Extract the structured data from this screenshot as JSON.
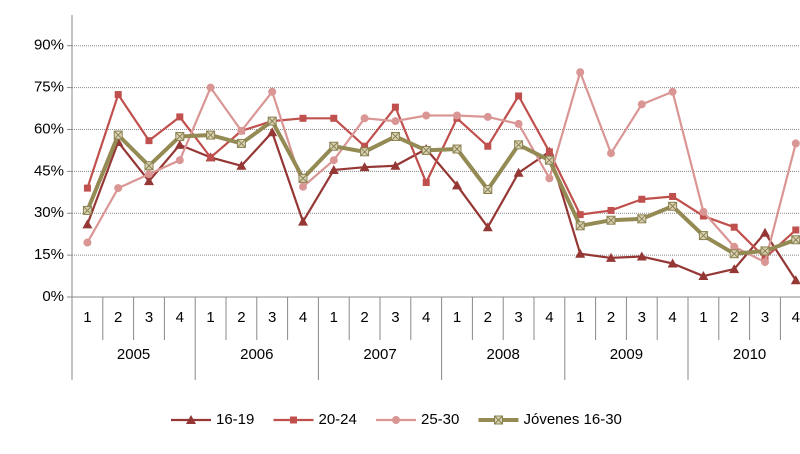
{
  "chart_data": {
    "type": "line",
    "categories": [
      "1",
      "2",
      "3",
      "4",
      "1",
      "2",
      "3",
      "4",
      "1",
      "2",
      "3",
      "4",
      "1",
      "2",
      "3",
      "4",
      "1",
      "2",
      "3",
      "4",
      "1",
      "2",
      "3",
      "4"
    ],
    "years": [
      "2005",
      "2006",
      "2007",
      "2008",
      "2009",
      "2010"
    ],
    "series": [
      {
        "name": "16-19",
        "color": "#953735",
        "marker": "triangle",
        "values": [
          26,
          55.5,
          41.5,
          54.5,
          50,
          47,
          59,
          27,
          45.5,
          46.5,
          47,
          53,
          40,
          25,
          44.5,
          52,
          15.5,
          14,
          14.5,
          12,
          7.5,
          10,
          23,
          6
        ]
      },
      {
        "name": "20-24",
        "color": "#c0504d",
        "marker": "square",
        "values": [
          39,
          72.5,
          56,
          64.5,
          50,
          59.5,
          63,
          64,
          64,
          54,
          68,
          41,
          64,
          54,
          72,
          52,
          29.5,
          31,
          35,
          36,
          29,
          25,
          14,
          24
        ]
      },
      {
        "name": "25-30",
        "color": "#d99694",
        "marker": "circle",
        "values": [
          19.5,
          39,
          44,
          49,
          75,
          59.5,
          73.5,
          39.5,
          49,
          64,
          63,
          65,
          65,
          64.5,
          62,
          42.5,
          80.5,
          51.5,
          69,
          73.5,
          30.5,
          18,
          12.5,
          55
        ]
      },
      {
        "name": "Jóvenes 16-30",
        "color": "#948a54",
        "marker": "xsquare",
        "values": [
          31,
          58,
          47,
          57.5,
          58,
          55,
          63,
          42.5,
          54,
          52,
          57.5,
          52.5,
          53,
          38.5,
          54.5,
          49,
          25.5,
          27.5,
          28,
          32.5,
          22,
          15.5,
          16.5,
          20.5
        ]
      }
    ],
    "ylim": [
      0,
      101
    ],
    "yticks": [
      {
        "value": 0,
        "label": "0%"
      },
      {
        "value": 15,
        "label": "15%"
      },
      {
        "value": 30,
        "label": "30%"
      },
      {
        "value": 45,
        "label": "45%"
      },
      {
        "value": 60,
        "label": "60%"
      },
      {
        "value": 75,
        "label": "75%"
      },
      {
        "value": 90,
        "label": "90%"
      }
    ],
    "grid": true,
    "legend": "bottom"
  }
}
